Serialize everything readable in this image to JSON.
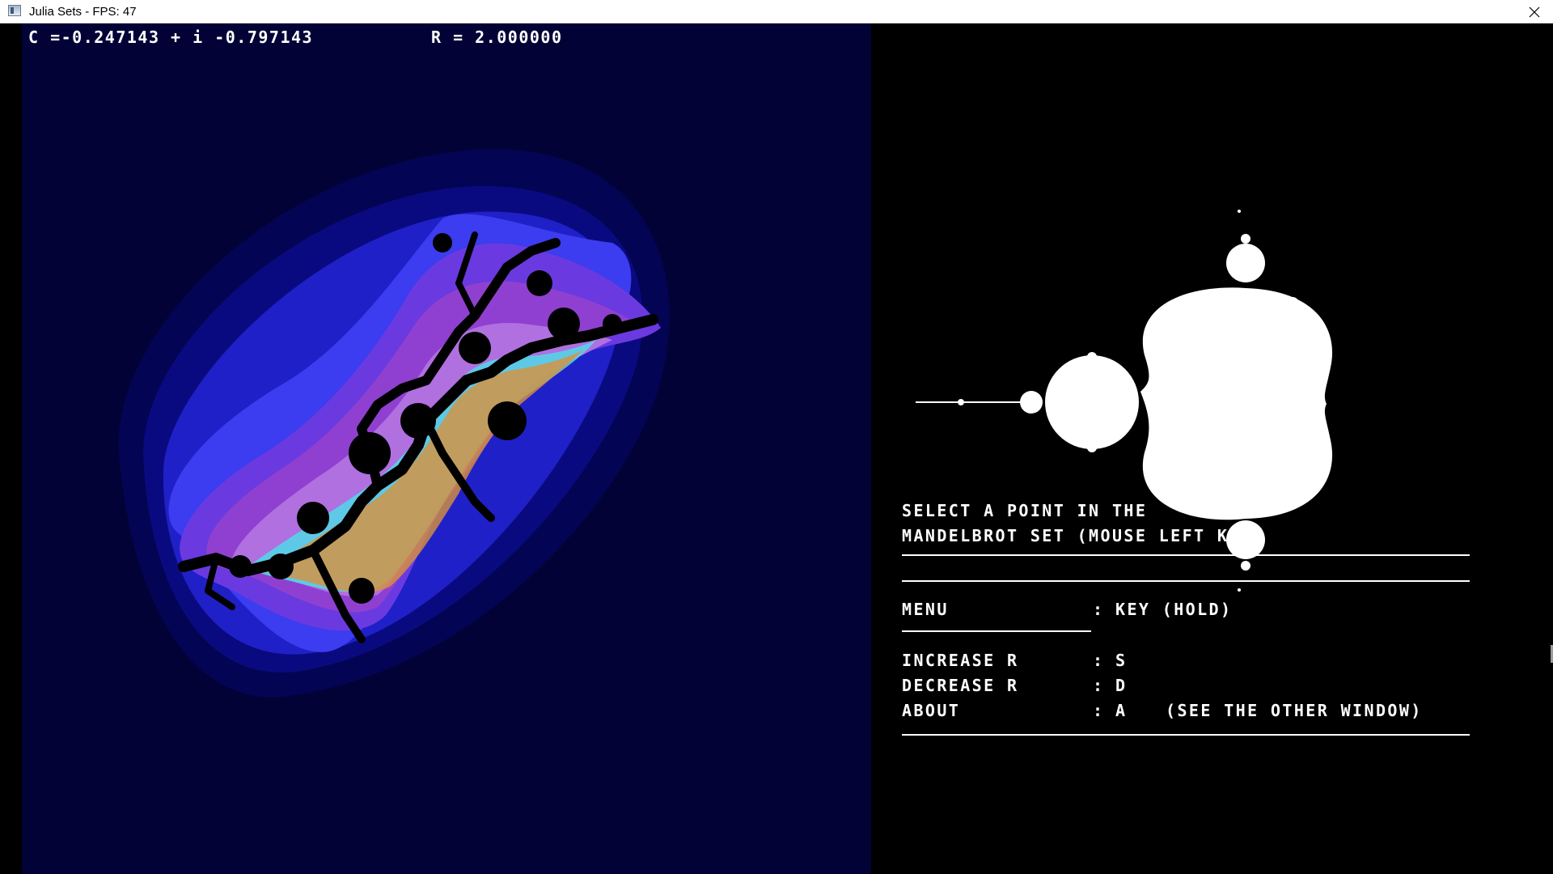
{
  "window": {
    "title": "Julia Sets - FPS: 47",
    "icons": {
      "app": "app-window-icon",
      "close": "close-icon"
    }
  },
  "julia": {
    "c_label": "C =-0.247143 + i -0.797143",
    "r_label": "R = 2.000000",
    "colors": {
      "background": "#020236",
      "band1": "#040454",
      "band2": "#0a0a80",
      "band3": "#2020c8",
      "band4": "#3c3cf0",
      "band5": "#6a3ae0",
      "band6": "#9040d0",
      "band7": "#b070e0",
      "cyan": "#50d8e8",
      "orange": "#d8923c",
      "black": "#000000"
    }
  },
  "mandelbrot": {
    "color": "#ffffff"
  },
  "help": {
    "instruction_line1": "SELECT A POINT IN THE",
    "instruction_line2": "MANDELBROT SET (MOUSE LEFT KEY)",
    "menu": {
      "label": "MENU",
      "separator": ":",
      "key": "KEY (HOLD)"
    },
    "items": [
      {
        "label": "INCREASE R",
        "separator": ":",
        "key": "S",
        "note": ""
      },
      {
        "label": "DECREASE R",
        "separator": ":",
        "key": "D",
        "note": ""
      },
      {
        "label": "ABOUT",
        "separator": ":",
        "key": "A",
        "note": "(SEE THE OTHER WINDOW)"
      }
    ]
  }
}
